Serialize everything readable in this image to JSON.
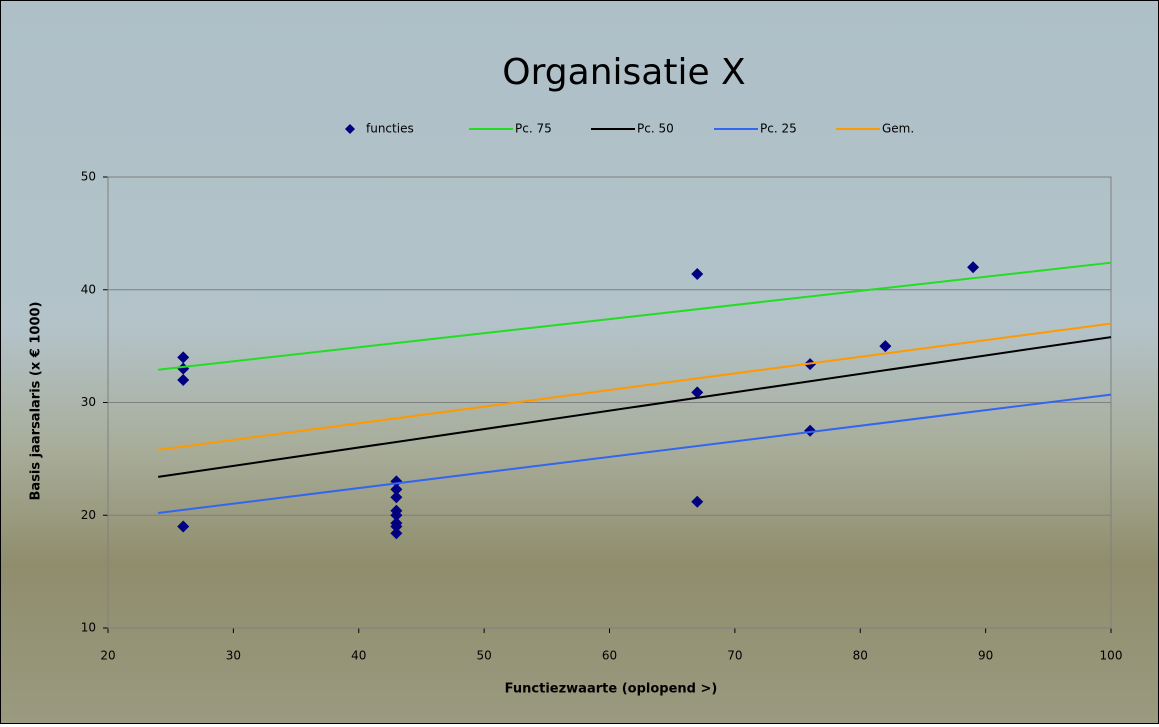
{
  "chart_data": {
    "type": "scatter",
    "title": "Organisatie X",
    "x_label": "Functiezwaarte (oplopend >)",
    "y_label": "Basis jaarsalaris (x € 1000)",
    "xlim": [
      20,
      100
    ],
    "ylim": [
      10,
      50
    ],
    "xticks": [
      20,
      30,
      40,
      50,
      60,
      70,
      80,
      90,
      100
    ],
    "yticks": [
      10,
      20,
      30,
      40,
      50
    ],
    "grid": true,
    "series": [
      {
        "name": "functies",
        "style": "markers",
        "color": "#000080",
        "x": [
          26,
          26,
          26,
          26,
          43,
          43,
          43,
          43,
          43,
          43,
          43,
          43,
          67,
          67,
          67,
          76,
          76,
          82,
          89
        ],
        "values": [
          34,
          33,
          32,
          19,
          23,
          22.3,
          21.6,
          20.4,
          20,
          19.3,
          19,
          18.4,
          41.4,
          30.9,
          21.2,
          33.4,
          27.5,
          35,
          42
        ]
      },
      {
        "name": "Pc. 75",
        "style": "line",
        "color": "#22dd22",
        "x": [
          24,
          100
        ],
        "values": [
          32.9,
          42.4
        ]
      },
      {
        "name": "Pc. 50",
        "style": "line",
        "color": "#000000",
        "x": [
          24,
          100
        ],
        "values": [
          23.4,
          35.8
        ]
      },
      {
        "name": "Pc. 25",
        "style": "line",
        "color": "#3366ee",
        "x": [
          24,
          100
        ],
        "values": [
          20.2,
          30.7
        ]
      },
      {
        "name": "Gem.",
        "style": "line",
        "color": "#ff9900",
        "x": [
          24,
          100
        ],
        "values": [
          25.8,
          37
        ]
      }
    ]
  }
}
